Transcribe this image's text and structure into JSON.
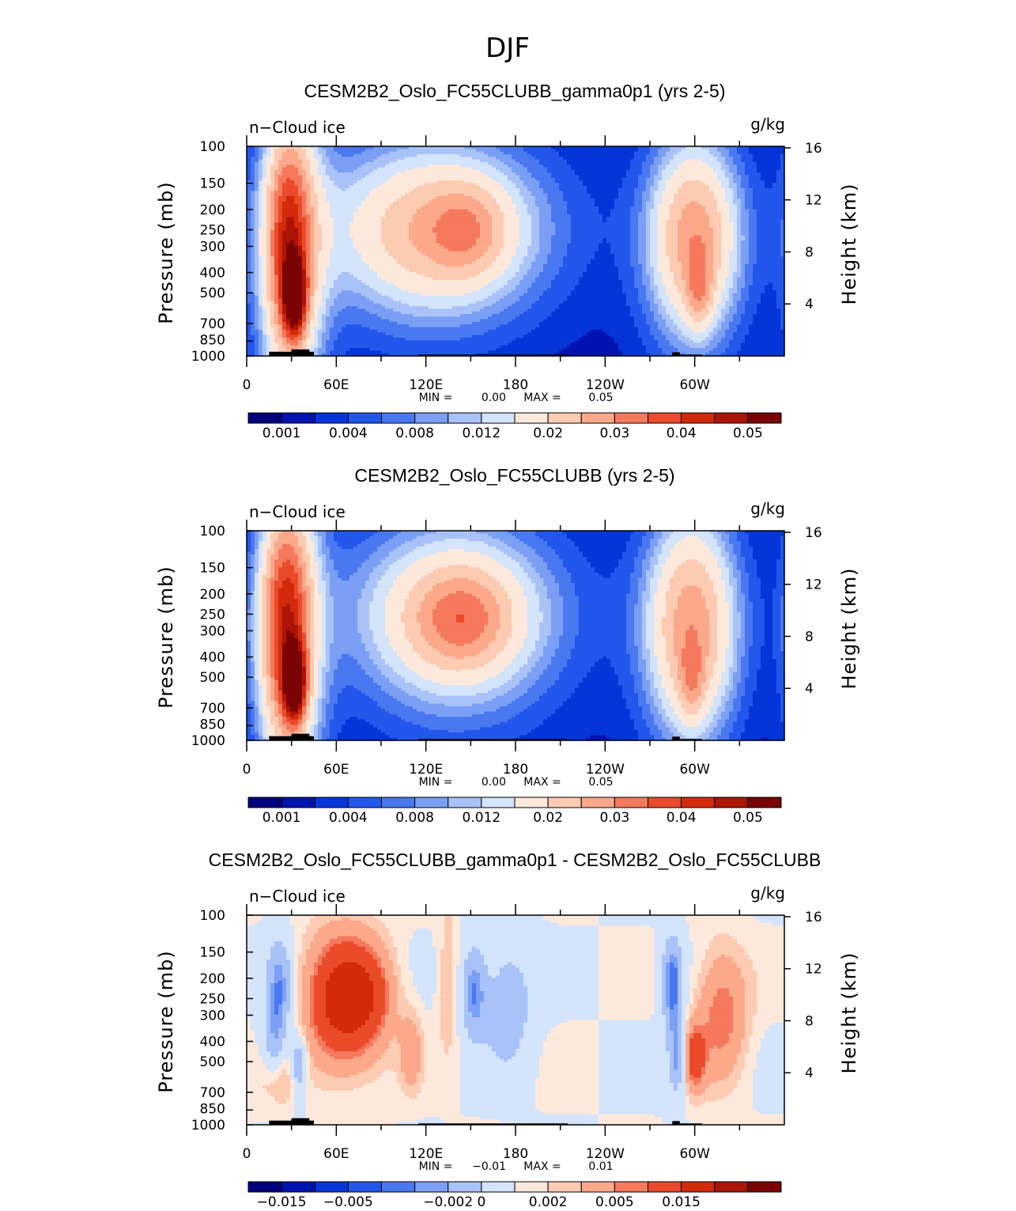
{
  "figure_title": "DJF",
  "chart_data": [
    {
      "type": "heatmap",
      "title": "CESM2B2_Oslo_FC55CLUBB_gamma0p1 (yrs 2-5)",
      "left_label": "n−Cloud ice",
      "units": "g/kg",
      "ylabel": "Pressure (mb)",
      "ylabel_right": "Height (km)",
      "x_ticks": [
        "0",
        "60E",
        "120E",
        "180",
        "120W",
        "60W"
      ],
      "y_ticks": [
        "100",
        "150",
        "200",
        "250",
        "300",
        "400",
        "500",
        "700",
        "850",
        "1000"
      ],
      "y_ticks_right": [
        "16",
        "12",
        "8",
        "4"
      ],
      "min_label": "MIN =",
      "min_value": "0.00",
      "max_label": "MAX =",
      "max_value": "0.05",
      "levels": [
        0.001,
        0.002,
        0.004,
        0.006,
        0.008,
        0.01,
        0.012,
        0.015,
        0.02,
        0.025,
        0.03,
        0.035,
        0.04,
        0.045,
        0.05
      ],
      "colorbar_labels": [
        "0.001",
        "0.004",
        "0.008",
        "0.012",
        "0.02",
        "0.03",
        "0.04",
        "0.05"
      ],
      "colors": [
        "#00007e",
        "#0012b0",
        "#0435d8",
        "#2257ec",
        "#4a78f0",
        "#7b9ff4",
        "#a9c2f8",
        "#d3e4fb",
        "#fde9dc",
        "#fdcbb2",
        "#fba88b",
        "#f5795d",
        "#ea4b2a",
        "#d22a0b",
        "#ac1406",
        "#7a0403"
      ],
      "features": [
        {
          "lon": 28,
          "p": 280,
          "sx": 10,
          "sp": 0.8,
          "amp": 0.024
        },
        {
          "lon": 32,
          "p": 520,
          "sx": 5,
          "sp": 0.28,
          "amp": 0.042
        },
        {
          "lon": 30,
          "p": 350,
          "sx": 16,
          "sp": 1.3,
          "amp": 0.018
        },
        {
          "lon": 125,
          "p": 255,
          "sx": 45,
          "sp": 0.6,
          "amp": 0.018
        },
        {
          "lon": 148,
          "p": 250,
          "sx": 18,
          "sp": 0.35,
          "amp": 0.01
        },
        {
          "lon": 125,
          "p": 270,
          "sx": 75,
          "sp": 1.1,
          "amp": 0.006
        },
        {
          "lon": 300,
          "p": 270,
          "sx": 20,
          "sp": 0.7,
          "amp": 0.022
        },
        {
          "lon": 303,
          "p": 480,
          "sx": 6,
          "sp": 0.3,
          "amp": 0.012
        },
        {
          "lon": 298,
          "p": 330,
          "sx": 28,
          "sp": 1.2,
          "amp": 0.006
        }
      ]
    },
    {
      "type": "heatmap",
      "title": "CESM2B2_Oslo_FC55CLUBB (yrs 2-5)",
      "left_label": "n−Cloud ice",
      "units": "g/kg",
      "ylabel": "Pressure (mb)",
      "ylabel_right": "Height (km)",
      "x_ticks": [
        "0",
        "60E",
        "120E",
        "180",
        "120W",
        "60W"
      ],
      "y_ticks": [
        "100",
        "150",
        "200",
        "250",
        "300",
        "400",
        "500",
        "700",
        "850",
        "1000"
      ],
      "y_ticks_right": [
        "16",
        "12",
        "8",
        "4"
      ],
      "min_label": "MIN =",
      "min_value": "0.00",
      "max_label": "MAX =",
      "max_value": "0.05",
      "levels": [
        0.001,
        0.002,
        0.004,
        0.006,
        0.008,
        0.01,
        0.012,
        0.015,
        0.02,
        0.025,
        0.03,
        0.035,
        0.04,
        0.045,
        0.05
      ],
      "colorbar_labels": [
        "0.001",
        "0.004",
        "0.008",
        "0.012",
        "0.02",
        "0.03",
        "0.04",
        "0.05"
      ],
      "colors": [
        "#00007e",
        "#0012b0",
        "#0435d8",
        "#2257ec",
        "#4a78f0",
        "#7b9ff4",
        "#a9c2f8",
        "#d3e4fb",
        "#fde9dc",
        "#fdcbb2",
        "#fba88b",
        "#f5795d",
        "#ea4b2a",
        "#d22a0b",
        "#ac1406",
        "#7a0403"
      ],
      "features": [
        {
          "lon": 26,
          "p": 270,
          "sx": 11,
          "sp": 0.85,
          "amp": 0.026
        },
        {
          "lon": 32,
          "p": 530,
          "sx": 5,
          "sp": 0.28,
          "amp": 0.042
        },
        {
          "lon": 29,
          "p": 350,
          "sx": 16,
          "sp": 1.3,
          "amp": 0.018
        },
        {
          "lon": 140,
          "p": 260,
          "sx": 40,
          "sp": 0.6,
          "amp": 0.018
        },
        {
          "lon": 145,
          "p": 265,
          "sx": 20,
          "sp": 0.35,
          "amp": 0.01
        },
        {
          "lon": 140,
          "p": 290,
          "sx": 70,
          "sp": 1.2,
          "amp": 0.006
        },
        {
          "lon": 298,
          "p": 280,
          "sx": 20,
          "sp": 0.8,
          "amp": 0.022
        },
        {
          "lon": 298,
          "p": 520,
          "sx": 6,
          "sp": 0.3,
          "amp": 0.01
        },
        {
          "lon": 298,
          "p": 330,
          "sx": 28,
          "sp": 1.2,
          "amp": 0.006
        }
      ]
    },
    {
      "type": "heatmap",
      "title": "CESM2B2_Oslo_FC55CLUBB_gamma0p1 - CESM2B2_Oslo_FC55CLUBB",
      "left_label": "n−Cloud ice",
      "units": "g/kg",
      "ylabel": "Pressure (mb)",
      "ylabel_right": "Height (km)",
      "x_ticks": [
        "0",
        "60E",
        "120E",
        "180",
        "120W",
        "60W"
      ],
      "y_ticks": [
        "100",
        "150",
        "200",
        "250",
        "300",
        "400",
        "500",
        "700",
        "850",
        "1000"
      ],
      "y_ticks_right": [
        "16",
        "12",
        "8",
        "4"
      ],
      "min_label": "MIN =",
      "min_value": "−0.01",
      "max_label": "MAX =",
      "max_value": "0.01",
      "levels": [
        -0.02,
        -0.015,
        -0.01,
        -0.008,
        -0.005,
        -0.004,
        -0.002,
        0,
        0.001,
        0.002,
        0.004,
        0.005,
        0.008,
        0.015,
        0.02
      ],
      "colorbar_labels": [
        "−0.015",
        "−0.005",
        "−0.002",
        "0",
        "0.002",
        "0.005",
        "0.015"
      ],
      "colors": [
        "#00007e",
        "#0012b0",
        "#0435d8",
        "#2257ec",
        "#4a78f0",
        "#7b9ff4",
        "#a9c2f8",
        "#d3e4fb",
        "#fde9dc",
        "#fdcbb2",
        "#fba88b",
        "#f5795d",
        "#ea4b2a",
        "#d22a0b",
        "#ac1406",
        "#7a0403"
      ],
      "features": [
        {
          "lon": 22,
          "p": 230,
          "sx": 6,
          "sp": 0.4,
          "amp": -0.005
        },
        {
          "lon": 35,
          "p": 520,
          "sx": 4,
          "sp": 0.25,
          "amp": -0.005
        },
        {
          "lon": 18,
          "p": 420,
          "sx": 5,
          "sp": 0.3,
          "amp": -0.003
        },
        {
          "lon": 66,
          "p": 255,
          "sx": 18,
          "sp": 0.5,
          "amp": 0.0105
        },
        {
          "lon": 85,
          "p": 240,
          "sx": 10,
          "sp": 0.3,
          "amp": 0.002
        },
        {
          "lon": 110,
          "p": 450,
          "sx": 5,
          "sp": 0.3,
          "amp": 0.003
        },
        {
          "lon": 152,
          "p": 230,
          "sx": 6,
          "sp": 0.35,
          "amp": -0.005
        },
        {
          "lon": 175,
          "p": 260,
          "sx": 12,
          "sp": 0.5,
          "amp": -0.0035
        },
        {
          "lon": 135,
          "p": 200,
          "sx": 5,
          "sp": 0.6,
          "amp": 0.002
        },
        {
          "lon": 285,
          "p": 210,
          "sx": 5,
          "sp": 0.35,
          "amp": -0.006
        },
        {
          "lon": 288,
          "p": 470,
          "sx": 4,
          "sp": 0.3,
          "amp": -0.005
        },
        {
          "lon": 300,
          "p": 480,
          "sx": 5,
          "sp": 0.25,
          "amp": 0.006
        },
        {
          "lon": 318,
          "p": 290,
          "sx": 12,
          "sp": 0.5,
          "amp": 0.005
        },
        {
          "lon": 22,
          "p": 620,
          "sx": 10,
          "sp": 0.2,
          "amp": 0.002
        }
      ]
    }
  ]
}
